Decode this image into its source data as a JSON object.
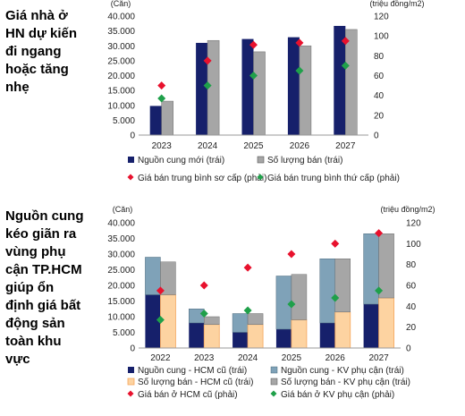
{
  "chart_data": [
    {
      "type": "bar",
      "title_lines": [
        "Giá nhà ở",
        "HN dự kiến",
        "đi ngang",
        "hoặc tăng",
        "nhẹ"
      ],
      "left_unit": "(Căn)",
      "right_unit": "(triệu đồng/m2)",
      "categories": [
        "2023",
        "2024",
        "2025",
        "2026",
        "2027"
      ],
      "ylim_left": [
        0,
        40000
      ],
      "yticks_left": [
        "0",
        "5.000",
        "10.000",
        "15.000",
        "20.000",
        "25.000",
        "30.000",
        "35.000",
        "40.000"
      ],
      "ylim_right": [
        0,
        120
      ],
      "yticks_right": [
        "0",
        "20",
        "40",
        "60",
        "80",
        "100",
        "120"
      ],
      "series": [
        {
          "name": "Nguồn cung mới (trái)",
          "kind": "bar",
          "values": [
            9800,
            31000,
            32300,
            32900,
            36700
          ]
        },
        {
          "name": "Số lượng bán (trái)",
          "kind": "bar",
          "values": [
            11400,
            31800,
            28000,
            30000,
            35500
          ]
        },
        {
          "name": "Giá bán trung bình sơ cấp (phải)",
          "kind": "marker",
          "values": [
            50,
            75,
            91,
            93,
            95
          ]
        },
        {
          "name": "Giá bán trung bình thứ cấp (phải)",
          "kind": "marker",
          "values": [
            37,
            50,
            60,
            65,
            70
          ]
        }
      ],
      "colors": {
        "supply": "#16206b",
        "sold": "#a6a6a6",
        "primary": "#e8112d",
        "secondary": "#1fa04a"
      }
    },
    {
      "type": "bar",
      "title_lines": [
        "Nguồn cung",
        "kéo giãn ra",
        "vùng phụ",
        "cận TP.HCM",
        "giúp ổn",
        "định giá bất",
        "động sản",
        "toàn khu",
        "vực"
      ],
      "left_unit": "(Căn)",
      "right_unit": "(triệu đồng/m2)",
      "categories": [
        "2022",
        "2023",
        "2024",
        "2025",
        "2026",
        "2027"
      ],
      "ylim_left": [
        0,
        40000
      ],
      "yticks_left": [
        "0",
        "5.000",
        "10.000",
        "15.000",
        "20.000",
        "25.000",
        "30.000",
        "35.000",
        "40.000"
      ],
      "ylim_right": [
        0,
        120
      ],
      "yticks_right": [
        "0",
        "20",
        "40",
        "60",
        "80",
        "100",
        "120"
      ],
      "series": [
        {
          "name": "Nguồn cung - HCM cũ (trái)",
          "kind": "stack_a_bottom",
          "values": [
            17000,
            8000,
            5000,
            6000,
            8000,
            14000
          ]
        },
        {
          "name": "Nguồn cung - KV phụ cận (trái)",
          "kind": "stack_a_top",
          "values": [
            12000,
            4500,
            6000,
            17000,
            20500,
            22500
          ]
        },
        {
          "name": "Số lượng bán - HCM cũ (trái)",
          "kind": "stack_b_bottom",
          "values": [
            17000,
            7500,
            7500,
            9000,
            11500,
            16000
          ]
        },
        {
          "name": "Số lượng bán - KV phụ cận (trái)",
          "kind": "stack_b_top",
          "values": [
            10500,
            2500,
            3500,
            14500,
            17000,
            20500
          ]
        },
        {
          "name": "Giá bán ở HCM cũ (phải)",
          "kind": "marker",
          "values": [
            55,
            60,
            77,
            90,
            100,
            110
          ]
        },
        {
          "name": "Giá bán ở KV phụ cận (phải)",
          "kind": "marker",
          "values": [
            27,
            33,
            36,
            42,
            48,
            55
          ]
        }
      ],
      "colors": {
        "hcm": "#16206b",
        "kv": "#7fa2b8",
        "sold_hcm": "#fdd3a1",
        "sold_hcm_edge": "#f5a65b",
        "sold_kv": "#a6a6a6",
        "hcm_price": "#e8112d",
        "kv_price": "#1fa04a"
      }
    }
  ]
}
